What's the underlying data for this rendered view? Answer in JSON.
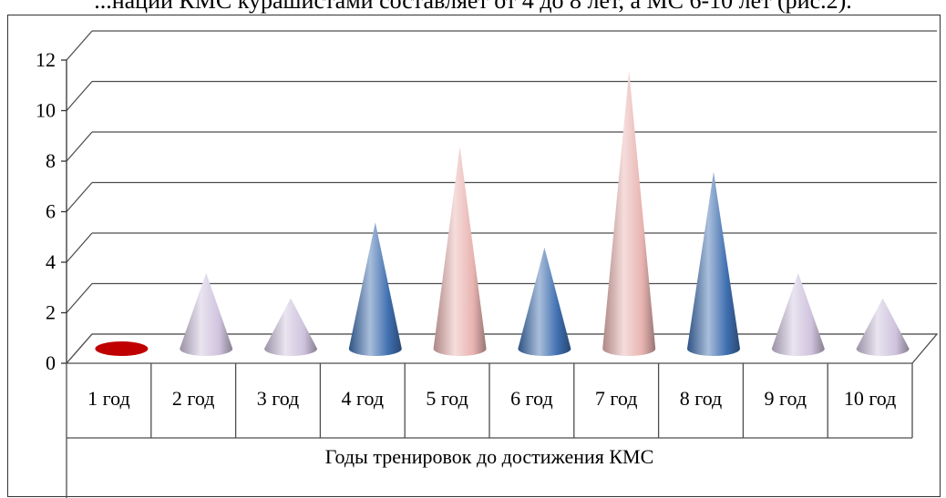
{
  "page": {
    "top_text": "...нации КМС курашистами составляет от 4 до 8 лет, а МС 6-10 лет (рис.2)."
  },
  "chart_data": {
    "type": "bar",
    "shape": "cone",
    "categories": [
      "1 год",
      "2 год",
      "3 год",
      "4 год",
      "5 год",
      "6 год",
      "7 год",
      "8 год",
      "9 год",
      "10 год"
    ],
    "values": [
      0,
      3,
      2,
      5,
      8,
      4,
      11,
      7,
      3,
      2
    ],
    "xlabel": "Годы тренировок до достижения КМС",
    "ylabel": "",
    "ylim": [
      0,
      12
    ],
    "yticks": [
      0,
      2,
      4,
      6,
      8,
      10,
      12
    ],
    "grid": true,
    "legend": "none",
    "colors": {
      "zero": "#c00000",
      "lavender": "#cfc3dd",
      "blue": "#3f6fb0",
      "pink": "#e8b4b1"
    },
    "point_colors": [
      "zero",
      "lavender",
      "lavender",
      "blue",
      "pink",
      "blue",
      "pink",
      "blue",
      "lavender",
      "lavender"
    ]
  }
}
